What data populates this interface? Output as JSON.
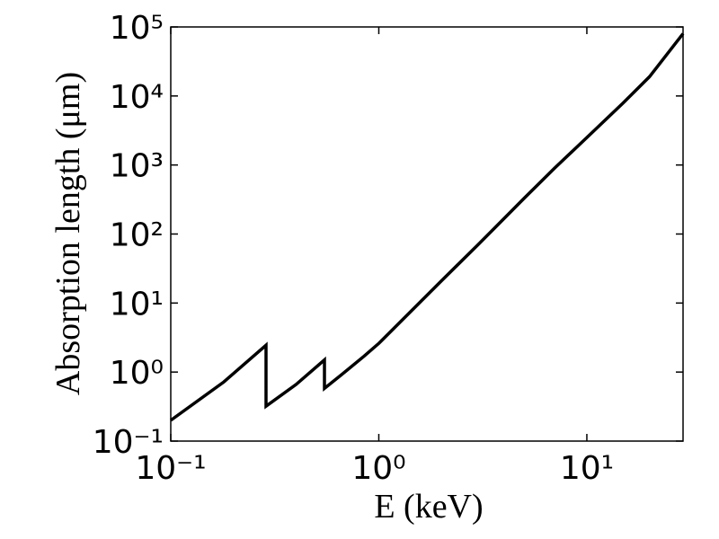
{
  "chart_data": {
    "type": "line",
    "x_label": "E (keV)",
    "y_label": "Absorption length (μm)",
    "xscale": "log",
    "yscale": "log",
    "xlim": [
      0.1,
      29
    ],
    "ylim": [
      0.1,
      100000
    ],
    "xticks": [
      {
        "value": 0.1,
        "label": "10⁻¹"
      },
      {
        "value": 1,
        "label": "10⁰"
      },
      {
        "value": 10,
        "label": "10¹"
      }
    ],
    "yticks": [
      {
        "value": 0.1,
        "label": "10⁻¹"
      },
      {
        "value": 1,
        "label": "10⁰"
      },
      {
        "value": 10,
        "label": "10¹"
      },
      {
        "value": 100,
        "label": "10²"
      },
      {
        "value": 1000,
        "label": "10³"
      },
      {
        "value": 10000,
        "label": "10⁴"
      },
      {
        "value": 100000,
        "label": "10⁵"
      }
    ],
    "x": [
      0.1,
      0.18,
      0.287,
      0.287,
      0.4,
      0.548,
      0.548,
      0.7,
      0.85,
      1,
      2,
      3,
      5,
      7,
      10,
      15,
      20,
      29
    ],
    "series": [
      {
        "color": "#000000",
        "values": [
          0.2,
          0.72,
          2.45,
          0.32,
          0.66,
          1.5,
          0.58,
          1.05,
          1.7,
          2.6,
          21,
          70,
          330,
          900,
          2500,
          8000,
          19000,
          80000
        ]
      }
    ]
  }
}
